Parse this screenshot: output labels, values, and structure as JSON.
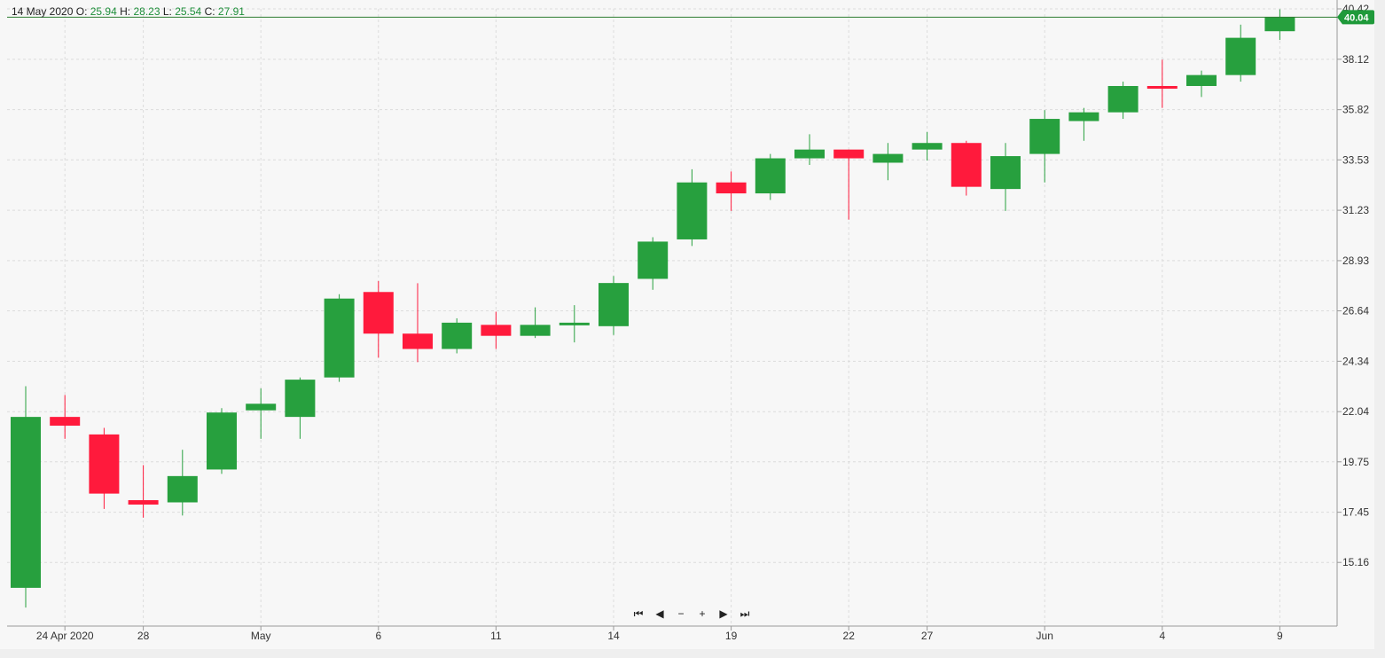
{
  "legend": {
    "date": "14 May 2020",
    "o_label": "O:",
    "o": "25.94",
    "h_label": "H:",
    "h": "28.23",
    "l_label": "L:",
    "l": "25.54",
    "c_label": "C:",
    "c": "27.91"
  },
  "last_price": "40.04",
  "nav": {
    "first": "⏮",
    "prev": "◀",
    "zoom_out": "−",
    "zoom_in": "+",
    "next": "▶",
    "last": "⏭"
  },
  "colors": {
    "up": "#27a03e",
    "down": "#ff1a3c",
    "grid": "#dcdcdc",
    "axis": "#999999",
    "last_badge": "#1f9a3a"
  },
  "chart_data": {
    "type": "candlestick",
    "y_ticks": [
      "40.42",
      "38.12",
      "35.82",
      "33.53",
      "31.23",
      "28.93",
      "26.64",
      "24.34",
      "22.04",
      "19.75",
      "17.45",
      "15.16"
    ],
    "ylim": [
      12.7,
      40.42
    ],
    "x_tick_labels": [
      {
        "date": "2020-04-24",
        "label": "24 Apr 2020"
      },
      {
        "date": "2020-04-28",
        "label": "28"
      },
      {
        "date": "2020-05-01",
        "label": "May"
      },
      {
        "date": "2020-05-06",
        "label": "6"
      },
      {
        "date": "2020-05-11",
        "label": "11"
      },
      {
        "date": "2020-05-14",
        "label": "14"
      },
      {
        "date": "2020-05-19",
        "label": "19"
      },
      {
        "date": "2020-05-22",
        "label": "22"
      },
      {
        "date": "2020-05-27",
        "label": "27"
      },
      {
        "date": "2020-06-01",
        "label": "Jun"
      },
      {
        "date": "2020-06-04",
        "label": "4"
      },
      {
        "date": "2020-06-09",
        "label": "9"
      }
    ],
    "candles": [
      {
        "date": "2020-04-23",
        "o": 14.0,
        "h": 23.2,
        "l": 13.1,
        "c": 21.8
      },
      {
        "date": "2020-04-24",
        "o": 21.8,
        "h": 22.8,
        "l": 20.8,
        "c": 21.4
      },
      {
        "date": "2020-04-27",
        "o": 21.0,
        "h": 21.3,
        "l": 17.6,
        "c": 18.3
      },
      {
        "date": "2020-04-28",
        "o": 18.0,
        "h": 19.6,
        "l": 17.2,
        "c": 17.8
      },
      {
        "date": "2020-04-29",
        "o": 17.9,
        "h": 20.3,
        "l": 17.3,
        "c": 19.1
      },
      {
        "date": "2020-04-30",
        "o": 19.4,
        "h": 22.2,
        "l": 19.2,
        "c": 22.0
      },
      {
        "date": "2020-05-01",
        "o": 22.1,
        "h": 23.1,
        "l": 20.8,
        "c": 22.4
      },
      {
        "date": "2020-05-04",
        "o": 21.8,
        "h": 23.6,
        "l": 20.8,
        "c": 23.5
      },
      {
        "date": "2020-05-05",
        "o": 23.6,
        "h": 27.4,
        "l": 23.4,
        "c": 27.2
      },
      {
        "date": "2020-05-06",
        "o": 27.5,
        "h": 28.0,
        "l": 24.5,
        "c": 25.6
      },
      {
        "date": "2020-05-07",
        "o": 25.6,
        "h": 27.9,
        "l": 24.3,
        "c": 24.9
      },
      {
        "date": "2020-05-08",
        "o": 24.9,
        "h": 26.3,
        "l": 24.7,
        "c": 26.1
      },
      {
        "date": "2020-05-11",
        "o": 26.0,
        "h": 26.6,
        "l": 24.9,
        "c": 25.5
      },
      {
        "date": "2020-05-12",
        "o": 25.5,
        "h": 26.8,
        "l": 25.4,
        "c": 26.0
      },
      {
        "date": "2020-05-13",
        "o": 26.0,
        "h": 26.9,
        "l": 25.2,
        "c": 26.1
      },
      {
        "date": "2020-05-14",
        "o": 25.94,
        "h": 28.23,
        "l": 25.54,
        "c": 27.91
      },
      {
        "date": "2020-05-15",
        "o": 28.1,
        "h": 30.0,
        "l": 27.6,
        "c": 29.8
      },
      {
        "date": "2020-05-18",
        "o": 29.9,
        "h": 33.1,
        "l": 29.6,
        "c": 32.5
      },
      {
        "date": "2020-05-19",
        "o": 32.5,
        "h": 33.0,
        "l": 31.2,
        "c": 32.0
      },
      {
        "date": "2020-05-20",
        "o": 32.0,
        "h": 33.8,
        "l": 31.7,
        "c": 33.6
      },
      {
        "date": "2020-05-21",
        "o": 33.6,
        "h": 34.7,
        "l": 33.3,
        "c": 34.0
      },
      {
        "date": "2020-05-22",
        "o": 34.0,
        "h": 34.0,
        "l": 30.8,
        "c": 33.6
      },
      {
        "date": "2020-05-26",
        "o": 33.4,
        "h": 34.3,
        "l": 32.6,
        "c": 33.8
      },
      {
        "date": "2020-05-27",
        "o": 34.0,
        "h": 34.8,
        "l": 33.5,
        "c": 34.3
      },
      {
        "date": "2020-05-28",
        "o": 34.3,
        "h": 34.4,
        "l": 31.9,
        "c": 32.3
      },
      {
        "date": "2020-05-29",
        "o": 32.2,
        "h": 34.3,
        "l": 31.2,
        "c": 33.7
      },
      {
        "date": "2020-06-01",
        "o": 33.8,
        "h": 35.8,
        "l": 32.5,
        "c": 35.4
      },
      {
        "date": "2020-06-02",
        "o": 35.3,
        "h": 35.9,
        "l": 34.4,
        "c": 35.7
      },
      {
        "date": "2020-06-03",
        "o": 35.7,
        "h": 37.1,
        "l": 35.4,
        "c": 36.9
      },
      {
        "date": "2020-06-04",
        "o": 36.9,
        "h": 38.1,
        "l": 35.9,
        "c": 36.8
      },
      {
        "date": "2020-06-05",
        "o": 36.9,
        "h": 37.6,
        "l": 36.4,
        "c": 37.4
      },
      {
        "date": "2020-06-08",
        "o": 37.4,
        "h": 39.7,
        "l": 37.1,
        "c": 39.1
      },
      {
        "date": "2020-06-09",
        "o": 39.4,
        "h": 40.4,
        "l": 39.0,
        "c": 40.04
      }
    ],
    "grid": true
  }
}
